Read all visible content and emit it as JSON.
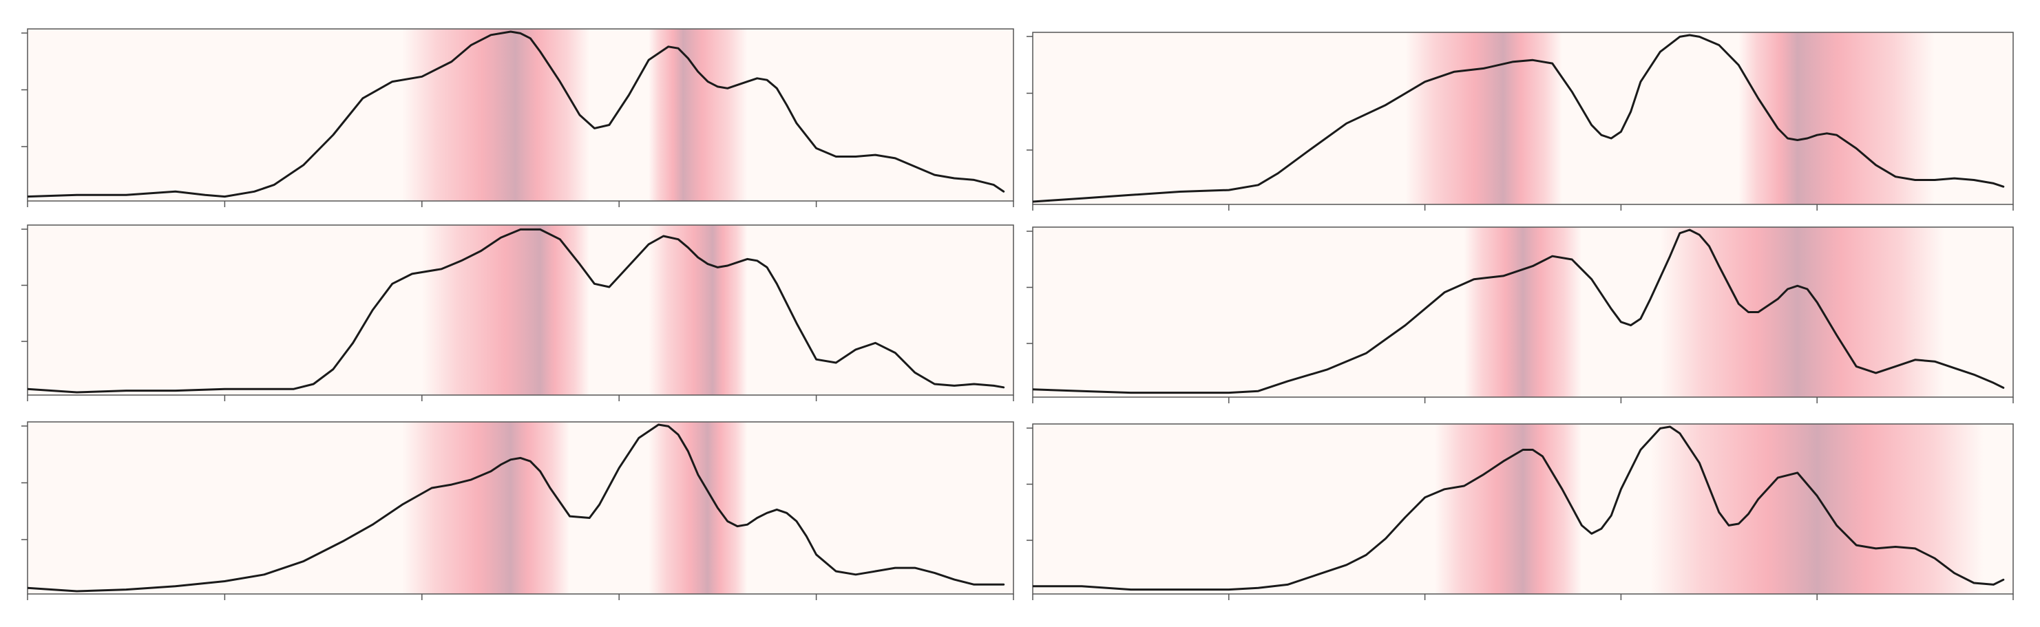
{
  "colors": {
    "background": "#fff9f6",
    "highlight": "#f7a6b0",
    "highlight_peak": "#d4aab6",
    "line": "#1a1a1a",
    "axis": "#555555",
    "page": "#ffffff"
  },
  "chart_data": [
    {
      "type": "line",
      "panel": "top-left",
      "title": "",
      "xlabel": "",
      "ylabel": "",
      "xlim": [
        0,
        100
      ],
      "ylim": [
        0,
        1
      ],
      "grid": false,
      "legend": "none",
      "x": [
        0,
        5,
        10,
        15,
        18,
        20,
        23,
        25,
        28,
        31,
        34,
        37,
        40,
        43,
        45,
        47,
        49,
        50,
        51,
        52,
        54,
        56,
        57.5,
        59,
        61,
        63,
        65,
        66,
        67,
        68,
        69,
        70,
        71,
        72,
        73,
        74,
        75,
        76,
        77,
        78,
        80,
        82,
        84,
        86,
        88,
        90,
        92,
        94,
        96,
        98,
        99
      ],
      "y": [
        0.01,
        0.02,
        0.02,
        0.04,
        0.02,
        0.01,
        0.04,
        0.08,
        0.2,
        0.38,
        0.6,
        0.7,
        0.73,
        0.82,
        0.92,
        0.98,
        1.0,
        0.99,
        0.96,
        0.88,
        0.7,
        0.5,
        0.42,
        0.44,
        0.62,
        0.83,
        0.91,
        0.9,
        0.84,
        0.76,
        0.7,
        0.67,
        0.66,
        0.68,
        0.7,
        0.72,
        0.71,
        0.66,
        0.56,
        0.45,
        0.3,
        0.25,
        0.25,
        0.26,
        0.24,
        0.19,
        0.14,
        0.12,
        0.11,
        0.08,
        0.04
      ],
      "bands": [
        {
          "x0": 38,
          "x1": 57,
          "peak": 49.5
        },
        {
          "x0": 63,
          "x1": 73,
          "peak": 66.5
        }
      ]
    },
    {
      "type": "line",
      "panel": "top-right",
      "title": "",
      "xlabel": "",
      "ylabel": "",
      "xlim": [
        0,
        100
      ],
      "ylim": [
        0,
        1
      ],
      "grid": false,
      "legend": "none",
      "x": [
        0,
        5,
        10,
        15,
        20,
        23,
        25,
        28,
        32,
        36,
        40,
        43,
        46,
        49,
        51,
        53,
        55,
        57,
        58,
        59,
        60,
        61,
        62,
        64,
        66,
        67,
        68,
        70,
        72,
        74,
        76,
        77,
        78,
        79,
        80,
        81,
        82,
        84,
        86,
        88,
        90,
        92,
        94,
        96,
        98,
        99
      ],
      "y": [
        0.0,
        0.02,
        0.04,
        0.06,
        0.07,
        0.1,
        0.17,
        0.3,
        0.47,
        0.58,
        0.72,
        0.78,
        0.8,
        0.84,
        0.85,
        0.83,
        0.66,
        0.46,
        0.4,
        0.38,
        0.42,
        0.54,
        0.72,
        0.9,
        0.99,
        1.0,
        0.99,
        0.94,
        0.82,
        0.62,
        0.44,
        0.38,
        0.37,
        0.38,
        0.4,
        0.41,
        0.4,
        0.32,
        0.22,
        0.15,
        0.13,
        0.13,
        0.14,
        0.13,
        0.11,
        0.09
      ],
      "bands": [
        {
          "x0": 38,
          "x1": 54,
          "peak": 48
        },
        {
          "x0": 72,
          "x1": 92,
          "peak": 78
        }
      ]
    },
    {
      "type": "line",
      "panel": "middle-left",
      "title": "",
      "xlabel": "",
      "ylabel": "",
      "xlim": [
        0,
        100
      ],
      "ylim": [
        0,
        1
      ],
      "grid": false,
      "legend": "none",
      "x": [
        0,
        5,
        10,
        15,
        20,
        24,
        27,
        29,
        31,
        33,
        35,
        37,
        39,
        42,
        44,
        46,
        48,
        50,
        52,
        54,
        56,
        57.5,
        59,
        61,
        63,
        64.5,
        66,
        67,
        68,
        69,
        70,
        71,
        72,
        73,
        74,
        75,
        76,
        78,
        80,
        82,
        84,
        86,
        88,
        90,
        92,
        94,
        96,
        98,
        99
      ],
      "y": [
        0.02,
        0.0,
        0.01,
        0.01,
        0.02,
        0.02,
        0.02,
        0.05,
        0.14,
        0.3,
        0.5,
        0.66,
        0.72,
        0.75,
        0.8,
        0.86,
        0.94,
        0.99,
        0.99,
        0.93,
        0.78,
        0.66,
        0.64,
        0.77,
        0.9,
        0.95,
        0.93,
        0.88,
        0.82,
        0.78,
        0.76,
        0.77,
        0.79,
        0.81,
        0.8,
        0.76,
        0.66,
        0.42,
        0.2,
        0.18,
        0.26,
        0.3,
        0.24,
        0.12,
        0.05,
        0.04,
        0.05,
        0.04,
        0.03
      ],
      "bands": [
        {
          "x0": 40,
          "x1": 57,
          "peak": 52
        },
        {
          "x0": 63,
          "x1": 73,
          "peak": 69.5
        }
      ]
    },
    {
      "type": "line",
      "panel": "middle-right",
      "title": "",
      "xlabel": "",
      "ylabel": "",
      "xlim": [
        0,
        100
      ],
      "ylim": [
        0,
        1
      ],
      "grid": false,
      "legend": "none",
      "x": [
        0,
        5,
        10,
        15,
        20,
        23,
        26,
        30,
        34,
        38,
        42,
        45,
        48,
        51,
        53,
        55,
        57,
        59,
        60,
        61,
        62,
        63,
        65,
        66,
        67,
        68,
        69,
        70,
        72,
        73,
        74,
        76,
        77,
        78,
        79,
        80,
        82,
        84,
        86,
        88,
        90,
        92,
        94,
        96,
        98,
        99
      ],
      "y": [
        0.03,
        0.02,
        0.01,
        0.01,
        0.01,
        0.02,
        0.08,
        0.15,
        0.25,
        0.42,
        0.62,
        0.7,
        0.72,
        0.78,
        0.84,
        0.82,
        0.7,
        0.52,
        0.44,
        0.42,
        0.46,
        0.58,
        0.84,
        0.98,
        1.0,
        0.97,
        0.9,
        0.78,
        0.55,
        0.5,
        0.5,
        0.58,
        0.64,
        0.66,
        0.64,
        0.56,
        0.36,
        0.17,
        0.13,
        0.17,
        0.21,
        0.2,
        0.16,
        0.12,
        0.07,
        0.04
      ],
      "bands": [
        {
          "x0": 44,
          "x1": 56,
          "peak": 50
        },
        {
          "x0": 64,
          "x1": 93,
          "peak": 78
        }
      ]
    },
    {
      "type": "line",
      "panel": "bottom-left",
      "title": "",
      "xlabel": "",
      "ylabel": "",
      "xlim": [
        0,
        100
      ],
      "ylim": [
        0,
        1
      ],
      "grid": false,
      "legend": "none",
      "x": [
        0,
        5,
        10,
        15,
        20,
        24,
        28,
        32,
        35,
        38,
        41,
        43,
        45,
        47,
        48,
        49,
        50,
        51,
        52,
        53,
        55,
        57,
        58,
        60,
        62,
        64,
        65,
        66,
        67,
        68,
        70,
        71,
        72,
        73,
        74,
        75,
        76,
        77,
        78,
        79,
        80,
        82,
        84,
        86,
        88,
        90,
        92,
        94,
        96,
        98,
        99
      ],
      "y": [
        0.02,
        0.0,
        0.01,
        0.03,
        0.06,
        0.1,
        0.18,
        0.3,
        0.4,
        0.52,
        0.62,
        0.64,
        0.67,
        0.72,
        0.76,
        0.79,
        0.8,
        0.78,
        0.72,
        0.62,
        0.45,
        0.44,
        0.52,
        0.74,
        0.92,
        1.0,
        0.99,
        0.94,
        0.84,
        0.7,
        0.5,
        0.42,
        0.39,
        0.4,
        0.44,
        0.47,
        0.49,
        0.47,
        0.42,
        0.33,
        0.22,
        0.12,
        0.1,
        0.12,
        0.14,
        0.14,
        0.11,
        0.07,
        0.04,
        0.04,
        0.04
      ],
      "bands": [
        {
          "x0": 38,
          "x1": 55,
          "peak": 49
        },
        {
          "x0": 63,
          "x1": 73,
          "peak": 69
        }
      ]
    },
    {
      "type": "line",
      "panel": "bottom-right",
      "title": "",
      "xlabel": "",
      "ylabel": "",
      "xlim": [
        0,
        100
      ],
      "ylim": [
        0,
        1
      ],
      "grid": false,
      "legend": "none",
      "x": [
        0,
        5,
        10,
        15,
        20,
        23,
        26,
        29,
        32,
        34,
        36,
        38,
        40,
        42,
        44,
        46,
        48,
        50,
        51,
        52,
        54,
        56,
        57,
        58,
        59,
        60,
        62,
        64,
        65,
        66,
        68,
        70,
        71,
        72,
        73,
        74,
        76,
        78,
        80,
        82,
        84,
        86,
        88,
        90,
        92,
        94,
        96,
        98,
        99
      ],
      "y": [
        0.03,
        0.03,
        0.01,
        0.01,
        0.01,
        0.02,
        0.04,
        0.1,
        0.16,
        0.22,
        0.32,
        0.45,
        0.57,
        0.62,
        0.64,
        0.71,
        0.79,
        0.86,
        0.86,
        0.82,
        0.62,
        0.4,
        0.35,
        0.38,
        0.46,
        0.62,
        0.86,
        0.99,
        1.0,
        0.96,
        0.78,
        0.48,
        0.4,
        0.41,
        0.47,
        0.56,
        0.69,
        0.72,
        0.58,
        0.4,
        0.28,
        0.26,
        0.27,
        0.26,
        0.2,
        0.11,
        0.05,
        0.04,
        0.07
      ],
      "bands": [
        {
          "x0": 41,
          "x1": 56,
          "peak": 50
        },
        {
          "x0": 63,
          "x1": 97,
          "peak": 80
        }
      ]
    }
  ]
}
